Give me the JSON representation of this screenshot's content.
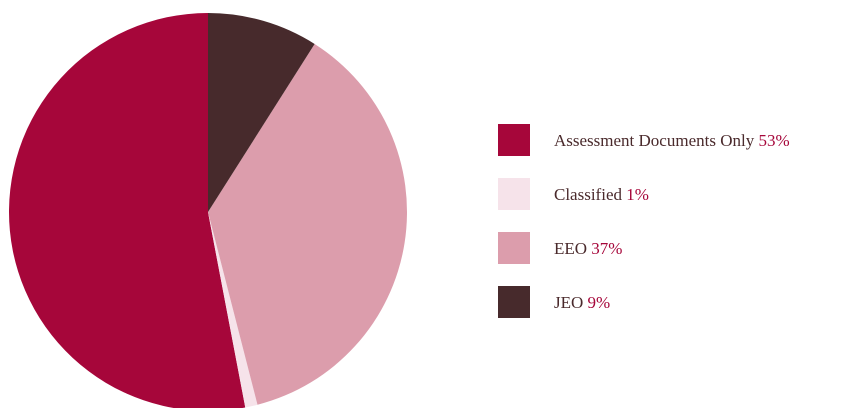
{
  "chart_data": {
    "type": "pie",
    "title": "",
    "slices": [
      {
        "label": "Assessment Documents Only",
        "value": 53,
        "pct_text": "53%",
        "color": "#a6063a"
      },
      {
        "label": "Classified",
        "value": 1,
        "pct_text": "1%",
        "color": "#f6e3ea"
      },
      {
        "label": "EEO",
        "value": 37,
        "pct_text": "37%",
        "color": "#dc9dac"
      },
      {
        "label": "JEO",
        "value": 9,
        "pct_text": "9%",
        "color": "#472a2c"
      }
    ],
    "start_angle": "12 o'clock",
    "direction": "counterclockwise",
    "legend_position": "right"
  }
}
